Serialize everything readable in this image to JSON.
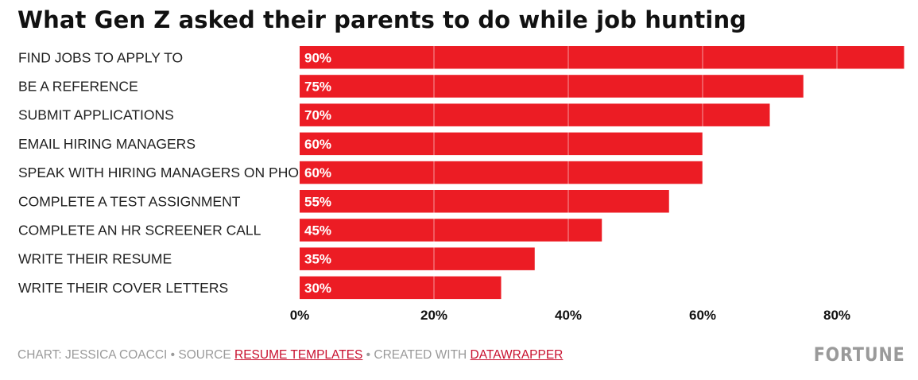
{
  "title": "What Gen Z asked their parents to do while job hunting",
  "chart_data": {
    "type": "bar",
    "orientation": "horizontal",
    "categories": [
      "FIND JOBS TO APPLY TO",
      "BE A REFERENCE",
      "SUBMIT APPLICATIONS",
      "EMAIL HIRING MANAGERS",
      "SPEAK WITH HIRING MANAGERS ON PHONE",
      "COMPLETE A TEST ASSIGNMENT",
      "COMPLETE AN HR SCREENER CALL",
      "WRITE THEIR RESUME",
      "WRITE THEIR COVER LETTERS"
    ],
    "values": [
      90,
      75,
      70,
      60,
      60,
      55,
      45,
      35,
      30
    ],
    "value_labels": [
      "90%",
      "75%",
      "70%",
      "60%",
      "60%",
      "55%",
      "45%",
      "35%",
      "30%"
    ],
    "xticks": [
      0,
      20,
      40,
      60,
      80
    ],
    "xtick_labels": [
      "0%",
      "20%",
      "40%",
      "60%",
      "80%"
    ],
    "xlim": [
      0,
      90
    ],
    "grid": true,
    "bar_color": "#ec1c24"
  },
  "footer": {
    "chart_credit": "CHART: JESSICA COACCI",
    "separator": " • ",
    "source_prefix": "SOURCE ",
    "source_link": "RESUME TEMPLATES",
    "created_prefix": "CREATED WITH ",
    "created_link": "DATAWRAPPER"
  },
  "logo_text": "FORTUNE"
}
